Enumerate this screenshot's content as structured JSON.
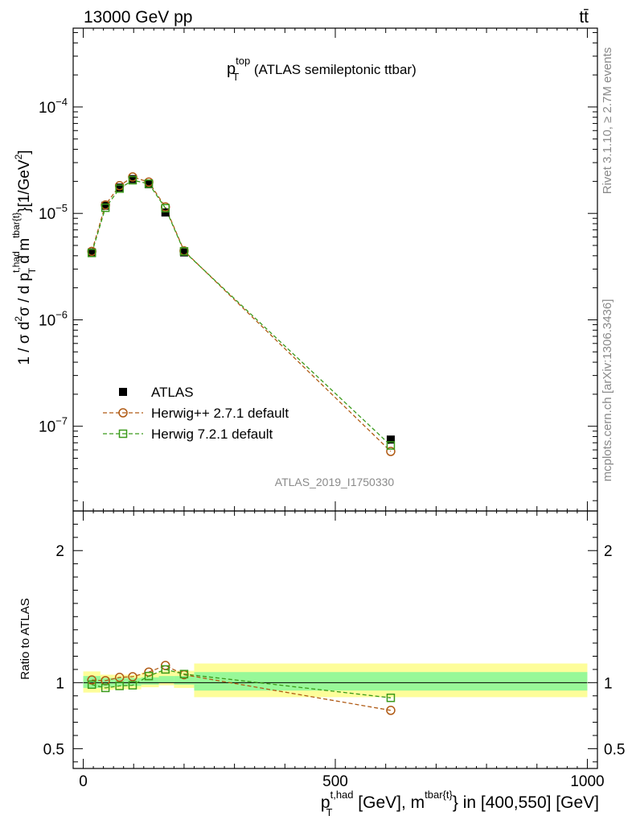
{
  "header": {
    "beam_label": "13000 GeV pp",
    "process_label": "tt̄"
  },
  "side": {
    "rivet_label": "Rivet 3.1.10, ≥ 2.7M events",
    "site_label": "mcplots.cern.ch [arXiv:1306.3436]"
  },
  "chart_data": [
    {
      "type": "line",
      "title": {
        "main": "p",
        "sup": "top",
        "sub": "T",
        "rest": " (ATLAS semileptonic ttbar)"
      },
      "watermark": "ATLAS_2019_I1750330",
      "ylabel": {
        "p1": "1 / σ d",
        "sup1": "2",
        "p2": "σ / d p",
        "sup2": "t,had",
        "sub2": "T",
        "p3": " d m",
        "sup3": "tbar{t}",
        "p4": "}[1/GeV",
        "sup4": "2",
        "p5": "]"
      },
      "yscale": "log",
      "xlim": [
        -20,
        1020
      ],
      "ylim": [
        1.6e-08,
        0.00055
      ],
      "yticks": [
        {
          "v": 1e-07,
          "base": "10",
          "exp": "−7"
        },
        {
          "v": 1e-06,
          "base": "10",
          "exp": "−6"
        },
        {
          "v": 1e-05,
          "base": "10",
          "exp": "−5"
        },
        {
          "v": 0.0001,
          "base": "10",
          "exp": "−4"
        }
      ],
      "legend_position": "bottom-left",
      "series": [
        {
          "name": "ATLAS",
          "marker": "filled-square",
          "color": "#000000",
          "points": [
            [
              17,
              4.3e-06
            ],
            [
              44,
              1.18e-05
            ],
            [
              72,
              1.75e-05
            ],
            [
              98,
              2.1e-05
            ],
            [
              130,
              1.88e-05
            ],
            [
              163,
              1.02e-05
            ],
            [
              200,
              4.3e-06
            ],
            [
              610,
              7.5e-08
            ]
          ]
        },
        {
          "name": "Herwig++ 2.7.1 default",
          "marker": "open-circle",
          "color": "#b05a14",
          "points": [
            [
              17,
              4.4e-06
            ],
            [
              44,
              1.2e-05
            ],
            [
              72,
              1.82e-05
            ],
            [
              98,
              2.2e-05
            ],
            [
              130,
              1.97e-05
            ],
            [
              163,
              1.15e-05
            ],
            [
              200,
              4.45e-06
            ],
            [
              610,
              5.8e-08
            ]
          ]
        },
        {
          "name": "Herwig 7.2.1 default",
          "marker": "open-square",
          "color": "#3a9a1a",
          "points": [
            [
              17,
              4.25e-06
            ],
            [
              44,
              1.13e-05
            ],
            [
              72,
              1.71e-05
            ],
            [
              98,
              2.05e-05
            ],
            [
              130,
              1.9e-05
            ],
            [
              163,
              1.12e-05
            ],
            [
              200,
              4.4e-06
            ],
            [
              610,
              6.6e-08
            ]
          ]
        }
      ]
    },
    {
      "type": "line",
      "ylabel": "Ratio to ATLAS",
      "xlabel": {
        "p1": "p",
        "sup1": "t,had",
        "sub1": "T",
        "p2": " [GeV], m",
        "sup2": "tbar{t}",
        "p3": "} in [400,550] [GeV]"
      },
      "xlim": [
        -20,
        1020
      ],
      "ylim": [
        0.35,
        2.3
      ],
      "yticks": [
        0.5,
        1,
        2
      ],
      "ytick_labels": [
        "0.5",
        "1",
        "2"
      ],
      "xticks": [
        0,
        500,
        1000
      ],
      "xtick_labels": [
        "0",
        "500",
        "1000"
      ],
      "bands": [
        {
          "x0": 0,
          "x1": 34,
          "yellow": [
            0.925,
            1.085
          ],
          "green": [
            0.96,
            1.05
          ]
        },
        {
          "x0": 34,
          "x1": 60,
          "yellow": [
            0.945,
            1.06
          ],
          "green": [
            0.97,
            1.035
          ]
        },
        {
          "x0": 60,
          "x1": 85,
          "yellow": [
            0.95,
            1.06
          ],
          "green": [
            0.975,
            1.035
          ]
        },
        {
          "x0": 85,
          "x1": 115,
          "yellow": [
            0.95,
            1.06
          ],
          "green": [
            0.975,
            1.035
          ]
        },
        {
          "x0": 115,
          "x1": 150,
          "yellow": [
            0.965,
            1.075
          ],
          "green": [
            0.985,
            1.04
          ]
        },
        {
          "x0": 150,
          "x1": 180,
          "yellow": [
            0.98,
            1.09
          ],
          "green": [
            1.0,
            1.05
          ]
        },
        {
          "x0": 180,
          "x1": 220,
          "yellow": [
            0.96,
            1.09
          ],
          "green": [
            0.985,
            1.05
          ]
        },
        {
          "x0": 220,
          "x1": 1000,
          "yellow": [
            0.89,
            1.145
          ],
          "green": [
            0.94,
            1.08
          ]
        }
      ],
      "series": [
        {
          "name": "Herwig++ 2.7.1 default",
          "marker": "open-circle",
          "color": "#b05a14",
          "points": [
            [
              17,
              1.02
            ],
            [
              44,
              1.015
            ],
            [
              72,
              1.04
            ],
            [
              98,
              1.045
            ],
            [
              130,
              1.08
            ],
            [
              163,
              1.13
            ],
            [
              200,
              1.06
            ],
            [
              610,
              0.79
            ]
          ]
        },
        {
          "name": "Herwig 7.2.1 default",
          "marker": "open-square",
          "color": "#3a9a1a",
          "points": [
            [
              17,
              0.985
            ],
            [
              44,
              0.96
            ],
            [
              72,
              0.975
            ],
            [
              98,
              0.98
            ],
            [
              130,
              1.05
            ],
            [
              163,
              1.1
            ],
            [
              200,
              1.065
            ],
            [
              610,
              0.885
            ]
          ]
        }
      ]
    }
  ]
}
